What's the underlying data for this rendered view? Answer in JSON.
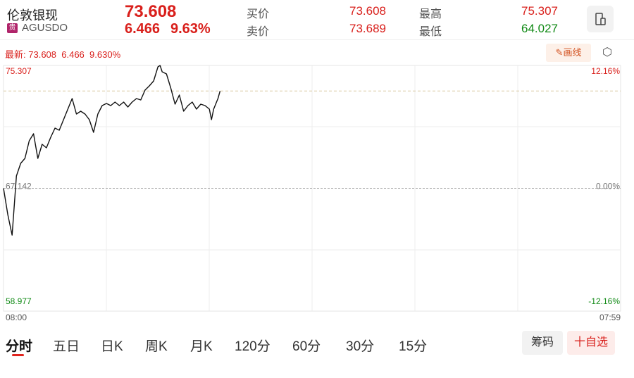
{
  "header": {
    "name": "伦敦银现",
    "badge": "贵",
    "code": "AGUSDO",
    "price": "73.608",
    "change": "6.466",
    "change_pct": "9.63%",
    "bid_label": "买价",
    "bid": "73.608",
    "ask_label": "卖价",
    "ask": "73.689",
    "high_label": "最高",
    "high": "75.307",
    "low_label": "最低",
    "low": "64.027"
  },
  "info": {
    "latest_label": "最新:",
    "latest": "73.608",
    "change": "6.466",
    "change_pct": "9.630%",
    "draw_button": "画线"
  },
  "chart_data": {
    "type": "line",
    "color": "#111111",
    "x": [
      "08:00",
      "08:10",
      "08:20",
      "08:30",
      "08:40",
      "08:50",
      "09:00",
      "09:10",
      "09:20",
      "09:30",
      "09:40",
      "09:50",
      "10:00",
      "10:10",
      "10:20",
      "10:30",
      "10:40",
      "10:50",
      "11:00",
      "11:10",
      "11:20",
      "11:30",
      "11:40",
      "11:50",
      "12:00",
      "12:10",
      "12:20",
      "12:30",
      "12:40",
      "12:50",
      "13:00",
      "13:10",
      "13:20",
      "13:30",
      "13:40",
      "13:50",
      "14:00",
      "14:05",
      "14:10",
      "14:20",
      "14:30",
      "14:40",
      "14:50",
      "15:00",
      "15:10",
      "15:20",
      "15:30",
      "15:40",
      "15:50",
      "16:00",
      "16:05",
      "16:10",
      "16:20",
      "16:25"
    ],
    "values": [
      67.142,
      65.387,
      64.027,
      67.961,
      68.803,
      69.13,
      70.3,
      70.768,
      69.13,
      70.066,
      69.832,
      70.534,
      71.142,
      71.002,
      71.704,
      72.406,
      73.108,
      72.078,
      72.265,
      72.078,
      71.704,
      70.861,
      72.078,
      72.64,
      72.78,
      72.64,
      72.874,
      72.64,
      72.874,
      72.546,
      72.874,
      73.108,
      73.015,
      73.67,
      73.95,
      74.278,
      75.213,
      75.307,
      74.886,
      74.746,
      73.81,
      72.733,
      73.341,
      72.265,
      72.64,
      72.874,
      72.406,
      72.733,
      72.64,
      72.406,
      71.704,
      72.406,
      73.108,
      73.608
    ],
    "xticks": [
      "08:00",
      "07:59"
    ],
    "ylim": [
      58.977,
      75.307
    ],
    "yticks": [
      58.977,
      67.142,
      75.307
    ],
    "y2lim": [
      -12.16,
      12.16
    ],
    "y2ticks": [
      {
        "value": -12.16,
        "label": "-12.16%"
      },
      {
        "value": 0,
        "label": "0.00%"
      },
      {
        "value": 12.16,
        "label": "12.16%"
      }
    ],
    "reference_line": 73.608,
    "grid": true
  },
  "tabs": [
    "分时",
    "五日",
    "日K",
    "周K",
    "月K",
    "120分",
    "60分",
    "30分",
    "15分"
  ],
  "buttons": {
    "chips": "筹码",
    "watchlist": "十自选"
  }
}
